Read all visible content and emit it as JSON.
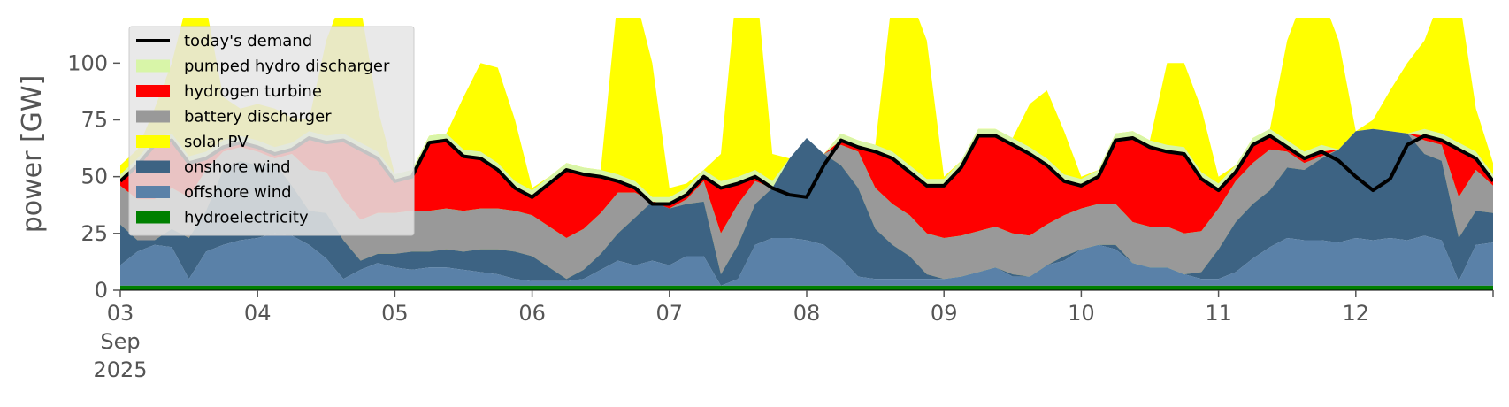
{
  "chart_data": {
    "type": "area",
    "title": "",
    "xlabel": "",
    "ylabel": "power [GW]",
    "ylim": [
      0,
      120
    ],
    "xlim": [
      0,
      240
    ],
    "x_unit": "hours since 2025-09-03 00:00",
    "yticks": [
      0,
      25,
      50,
      75,
      100
    ],
    "xticks": [
      {
        "x": 0,
        "lines": [
          "03",
          "Sep",
          "2025"
        ]
      },
      {
        "x": 24,
        "lines": [
          "04"
        ]
      },
      {
        "x": 48,
        "lines": [
          "05"
        ]
      },
      {
        "x": 72,
        "lines": [
          "06"
        ]
      },
      {
        "x": 96,
        "lines": [
          "07"
        ]
      },
      {
        "x": 120,
        "lines": [
          "08"
        ]
      },
      {
        "x": 144,
        "lines": [
          "09"
        ]
      },
      {
        "x": 168,
        "lines": [
          "10"
        ]
      },
      {
        "x": 192,
        "lines": [
          "11"
        ]
      },
      {
        "x": 216,
        "lines": [
          "12"
        ]
      }
    ],
    "grid": false,
    "legend_position": "top-left",
    "hours": [
      0,
      3,
      6,
      9,
      12,
      15,
      18,
      21,
      24,
      27,
      30,
      33,
      36,
      39,
      42,
      45,
      48,
      51,
      54,
      57,
      60,
      63,
      66,
      69,
      72,
      75,
      78,
      81,
      84,
      87,
      90,
      93,
      96,
      99,
      102,
      105,
      108,
      111,
      114,
      117,
      120,
      123,
      126,
      129,
      132,
      135,
      138,
      141,
      144,
      147,
      150,
      153,
      156,
      159,
      162,
      165,
      168,
      171,
      174,
      177,
      180,
      183,
      186,
      189,
      192,
      195,
      198,
      201,
      204,
      207,
      210,
      213,
      216,
      219,
      222,
      225,
      228,
      231,
      234,
      237,
      240
    ],
    "series": [
      {
        "name": "hydroelectricity",
        "color": "#008000",
        "values": [
          2,
          2,
          2,
          2,
          2,
          2,
          2,
          2,
          2,
          2,
          2,
          2,
          2,
          2,
          2,
          2,
          2,
          2,
          2,
          2,
          2,
          2,
          2,
          2,
          2,
          2,
          2,
          2,
          2,
          2,
          2,
          2,
          2,
          2,
          2,
          2,
          2,
          2,
          2,
          2,
          2,
          2,
          2,
          2,
          2,
          2,
          2,
          2,
          2,
          2,
          2,
          2,
          2,
          2,
          2,
          2,
          2,
          2,
          2,
          2,
          2,
          2,
          2,
          2,
          2,
          2,
          2,
          2,
          2,
          2,
          2,
          2,
          2,
          2,
          2,
          2,
          2,
          2,
          2,
          2,
          2
        ]
      },
      {
        "name": "offshore wind",
        "color": "#5a81a8",
        "values": [
          11,
          17,
          20,
          19,
          5,
          17,
          20,
          22,
          23,
          25,
          24,
          20,
          14,
          5,
          9,
          12,
          10,
          9,
          10,
          10,
          9,
          8,
          7,
          5,
          4,
          4,
          4,
          5,
          9,
          13,
          11,
          13,
          11,
          15,
          15,
          2,
          5,
          20,
          23,
          23,
          22,
          20,
          14,
          6,
          5,
          5,
          5,
          5,
          5,
          6,
          8,
          10,
          6,
          6,
          11,
          13,
          18,
          20,
          18,
          12,
          10,
          10,
          7,
          5,
          5,
          8,
          14,
          19,
          23,
          22,
          22,
          21,
          23,
          22,
          23,
          22,
          24,
          22,
          4,
          20,
          21
        ]
      },
      {
        "name": "onshore wind",
        "color": "#3d6383",
        "values": [
          29,
          22,
          22,
          27,
          23,
          35,
          53,
          57,
          55,
          56,
          46,
          35,
          34,
          22,
          13,
          16,
          16,
          17,
          17,
          18,
          17,
          18,
          18,
          17,
          15,
          10,
          5,
          9,
          16,
          25,
          32,
          39,
          36,
          38,
          39,
          7,
          20,
          38,
          45,
          58,
          67,
          60,
          55,
          45,
          27,
          20,
          15,
          7,
          5,
          5,
          6,
          10,
          7,
          6,
          10,
          15,
          18,
          18,
          20,
          12,
          7,
          6,
          6,
          8,
          18,
          30,
          38,
          44,
          54,
          53,
          58,
          62,
          70,
          71,
          70,
          69,
          60,
          57,
          23,
          35,
          34
        ]
      },
      {
        "name": "solar PV",
        "color": "#ffff00",
        "values": [
          0,
          0,
          0,
          0,
          0,
          0,
          0,
          0,
          0,
          0,
          0,
          0,
          0,
          0,
          0,
          0,
          0,
          0,
          0,
          0,
          0,
          0,
          0,
          0,
          0,
          0,
          0,
          0,
          0,
          0,
          0,
          0,
          0,
          0,
          0,
          0,
          0,
          0,
          0,
          0,
          0,
          0,
          0,
          0,
          0,
          0,
          0,
          0,
          0,
          0,
          0,
          0,
          0,
          0,
          0,
          0,
          0,
          0,
          0,
          0,
          0,
          0,
          0,
          0,
          0,
          0,
          0,
          0,
          0,
          0,
          0,
          0,
          0,
          0,
          0,
          0,
          0,
          0,
          0,
          0,
          0
        ]
      },
      {
        "name": "battery discharger",
        "color": "#999999",
        "values": [
          0,
          0,
          0,
          0,
          0,
          0,
          0,
          0,
          0,
          0,
          0,
          0,
          0,
          0,
          0,
          0,
          0,
          0,
          0,
          0,
          0,
          0,
          0,
          0,
          0,
          0,
          0,
          0,
          0,
          0,
          0,
          0,
          0,
          0,
          0,
          0,
          0,
          0,
          0,
          0,
          0,
          0,
          0,
          0,
          0,
          0,
          0,
          0,
          0,
          0,
          0,
          0,
          0,
          0,
          0,
          0,
          0,
          0,
          0,
          0,
          0,
          0,
          0,
          0,
          0,
          0,
          0,
          0,
          0,
          0,
          0,
          0,
          0,
          0,
          0,
          0,
          0,
          0,
          0,
          0,
          0
        ]
      },
      {
        "name": "hydrogen turbine",
        "color": "#ff0000",
        "values": [
          0,
          0,
          0,
          0,
          0,
          0,
          0,
          0,
          0,
          0,
          0,
          0,
          0,
          0,
          0,
          0,
          0,
          0,
          0,
          0,
          0,
          0,
          0,
          0,
          0,
          0,
          0,
          0,
          0,
          0,
          0,
          0,
          0,
          0,
          0,
          0,
          0,
          0,
          0,
          0,
          0,
          0,
          0,
          0,
          0,
          0,
          0,
          0,
          0,
          0,
          0,
          0,
          0,
          0,
          0,
          0,
          0,
          0,
          0,
          0,
          0,
          0,
          0,
          0,
          0,
          0,
          0,
          0,
          0,
          0,
          0,
          0,
          0,
          0,
          0,
          0,
          0,
          0,
          0,
          0,
          0
        ]
      },
      {
        "name": "pumped hydro discharger",
        "color": "#d8f5a8",
        "values": [
          0,
          0,
          0,
          0,
          0,
          0,
          0,
          0,
          0,
          0,
          0,
          0,
          0,
          0,
          0,
          0,
          0,
          0,
          0,
          0,
          0,
          0,
          0,
          0,
          0,
          0,
          0,
          0,
          0,
          0,
          0,
          0,
          0,
          0,
          0,
          0,
          0,
          0,
          0,
          0,
          0,
          0,
          0,
          0,
          0,
          0,
          0,
          0,
          0,
          0,
          0,
          0,
          0,
          0,
          0,
          0,
          0,
          0,
          0,
          0,
          0,
          0,
          0,
          0,
          0,
          0,
          0,
          0,
          0,
          0,
          0,
          0,
          0,
          0,
          0,
          0,
          0,
          0,
          0,
          0,
          0
        ]
      }
    ],
    "stack_top": [
      {
        "name": "solar PV",
        "values": [
          55,
          62,
          80,
          100,
          130,
          125,
          85,
          80,
          82,
          80,
          76,
          75,
          110,
          130,
          125,
          80,
          20,
          25,
          32,
          50,
          85,
          100,
          98,
          75,
          45,
          42,
          40,
          42,
          50,
          130,
          130,
          100,
          45,
          47,
          49,
          60,
          140,
          140,
          60,
          36,
          50,
          56,
          52,
          50,
          62,
          130,
          130,
          110,
          50,
          45,
          44,
          45,
          45,
          82,
          88,
          70,
          50,
          46,
          45,
          46,
          62,
          100,
          100,
          80,
          50,
          49,
          48,
          56,
          110,
          130,
          130,
          110,
          60,
          75,
          88,
          100,
          110,
          130,
          130,
          80,
          56
        ]
      },
      {
        "name": "battery discharger",
        "values": [
          0,
          0,
          0,
          0,
          0,
          0,
          0,
          0,
          0,
          0,
          0,
          0,
          0,
          0,
          0,
          0,
          0,
          0,
          0,
          0,
          0,
          0,
          0,
          0,
          0,
          0,
          0,
          0,
          0,
          0,
          0,
          0,
          0,
          0,
          0,
          0,
          0,
          0,
          0,
          0,
          0,
          0,
          0,
          0,
          0,
          0,
          0,
          0,
          0,
          0,
          0,
          0,
          0,
          0,
          0,
          0,
          0,
          0,
          0,
          0,
          0,
          0,
          0,
          0,
          0,
          0,
          0,
          0,
          0,
          0,
          0,
          0,
          0,
          0,
          0,
          0,
          0,
          0,
          0,
          0,
          0
        ]
      }
    ],
    "demand": {
      "name": "today's demand",
      "color": "#000000",
      "values": [
        48,
        55,
        64,
        66,
        56,
        58,
        63,
        65,
        63,
        60,
        62,
        67,
        65,
        66,
        62,
        58,
        48,
        50,
        65,
        66,
        59,
        58,
        53,
        45,
        41,
        47,
        53,
        51,
        50,
        48,
        45,
        38,
        38,
        42,
        50,
        45,
        47,
        50,
        45,
        42,
        41,
        55,
        66,
        63,
        61,
        58,
        52,
        46,
        46,
        54,
        68,
        68,
        64,
        60,
        55,
        48,
        46,
        50,
        66,
        67,
        63,
        61,
        60,
        49,
        44,
        52,
        64,
        68,
        63,
        58,
        61,
        57,
        50,
        44,
        49,
        64,
        68,
        66,
        62,
        58,
        48
      ]
    },
    "legend": [
      "today's demand",
      "pumped hydro discharger",
      "hydrogen turbine",
      "battery discharger",
      "solar PV",
      "onshore wind",
      "offshore wind",
      "hydroelectricity"
    ]
  }
}
